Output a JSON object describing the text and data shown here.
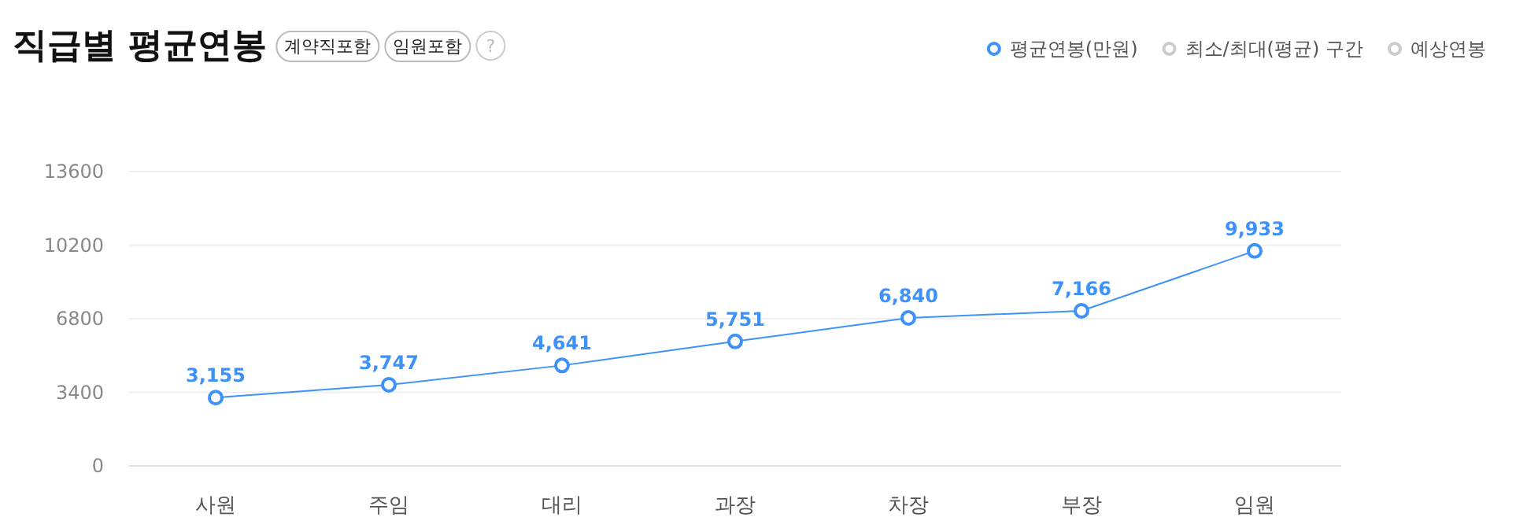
{
  "chart_data": {
    "type": "line",
    "title": "직급별 평균연봉",
    "annotations": [
      "계약직포함",
      "임원포함",
      "?"
    ],
    "categories": [
      "사원",
      "주임",
      "대리",
      "과장",
      "차장",
      "부장",
      "임원"
    ],
    "series": [
      {
        "name": "평균연봉(만원)",
        "color": "#3e92f7",
        "values": [
          3155,
          3747,
          4641,
          5751,
          6840,
          7166,
          9933
        ],
        "value_labels": [
          "3,155",
          "3,747",
          "4,641",
          "5,751",
          "6,840",
          "7,166",
          "9,933"
        ]
      },
      {
        "name": "최소/최대(평균) 구간",
        "color": "#cccccc",
        "values": [
          null,
          null,
          null,
          null,
          null,
          null,
          null
        ]
      },
      {
        "name": "예상연봉",
        "color": "#cccccc",
        "values": [
          null,
          null,
          null,
          null,
          null,
          null,
          null
        ]
      }
    ],
    "ylim": [
      0,
      13600
    ],
    "yticks": [
      0,
      3400,
      6800,
      10200,
      13600
    ],
    "grid": "y",
    "legend": "top right",
    "marker": "circle"
  }
}
